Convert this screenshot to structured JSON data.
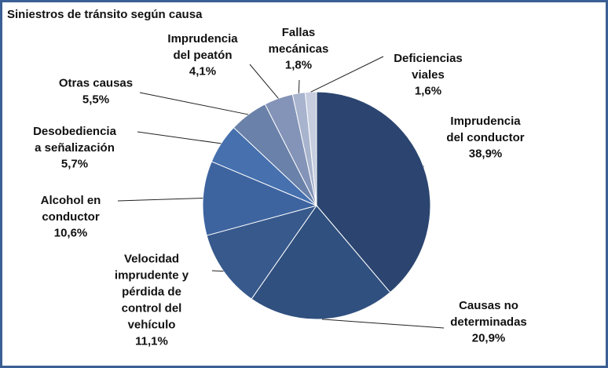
{
  "chart_data": {
    "type": "pie",
    "title": "Siniestros de tránsito según causa",
    "categories": [
      "Imprudencia\ndel conductor",
      "Causas  no\ndeterminadas",
      "Velocidad\nimprudente y\npérdida de\ncontrol del\nvehículo",
      "Alcohol  en\nconductor",
      "Desobediencia\na señalización",
      "Otras causas",
      "Imprudencia\ndel peatón",
      "Fallas\nmecánicas",
      "Deficiencias\nviales"
    ],
    "values": [
      38.9,
      20.9,
      11.1,
      10.6,
      5.7,
      5.5,
      4.1,
      1.8,
      1.6
    ],
    "value_labels": [
      "38,9%",
      "20,9%",
      "11,1%",
      "10,6%",
      "5,7%",
      "5,5%",
      "4,1%",
      "1,8%",
      "1,6%"
    ],
    "colors": [
      "#2b4570",
      "#30507f",
      "#37598c",
      "#3e64a0",
      "#4670ae",
      "#6a81a9",
      "#8494b8",
      "#a8b3cd",
      "#c6cedf"
    ]
  }
}
